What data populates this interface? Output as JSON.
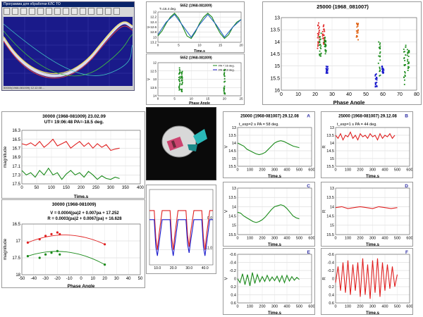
{
  "app": {
    "title": "Программа для обработки КЛС ТО",
    "status": "50000(1968-081009) 12.12.08  ...",
    "tool_count": 14
  },
  "colors": {
    "red": "#e02020",
    "green": "#1a8a1a",
    "blue": "#1a1acc",
    "dark_green": "#2a7a2a",
    "orange": "#e06010"
  },
  "chart_data": [
    {
      "id": "c2",
      "type": "line",
      "title": "5652 (1968-081009)",
      "annotation": "T=16.4 deg.",
      "xlabel": "Time,s",
      "ylabel": "V",
      "xlim": [
        0,
        20
      ],
      "ylim": [
        13.2,
        12.0
      ],
      "xticks": [
        0,
        5,
        10,
        15,
        20
      ],
      "yticks": [
        12.0,
        12.2,
        12.4,
        12.6,
        12.8,
        13.0,
        13.2
      ],
      "series": [
        {
          "color": "#1a8a1a",
          "x": [
            0,
            1,
            2,
            3,
            4,
            5,
            6,
            7,
            8,
            9,
            10,
            11,
            12,
            13,
            14,
            15,
            16,
            17,
            18,
            19,
            20
          ],
          "values": [
            12.95,
            12.75,
            12.45,
            12.2,
            12.05,
            12.25,
            12.6,
            12.95,
            13.05,
            12.8,
            12.45,
            12.2,
            12.05,
            12.2,
            12.55,
            12.85,
            13.05,
            12.9,
            12.6,
            12.4,
            12.3
          ]
        },
        {
          "color": "#2060c0",
          "x": [
            0,
            2,
            4,
            6,
            8,
            10,
            12,
            14,
            16,
            18,
            20
          ],
          "values": [
            12.9,
            12.4,
            12.1,
            12.55,
            13.0,
            12.5,
            12.1,
            12.5,
            13.0,
            12.6,
            12.3
          ]
        }
      ]
    },
    {
      "id": "c3",
      "type": "scatter",
      "title": "5652 (1968-081009)",
      "legend": [
        "PA = 16 deg.",
        "PA = 19 deg."
      ],
      "xlabel": "Phase Angle",
      "ylabel": "V",
      "xlim": [
        0,
        25
      ],
      "ylim": [
        14.0,
        12.0
      ],
      "xticks": [
        0,
        5,
        10,
        15,
        20,
        25
      ],
      "yticks": [
        12.0,
        12.5,
        13.0,
        13.5,
        14.0
      ],
      "clusters": [
        {
          "color": "#1a8a1a",
          "x": 6.5,
          "ymin": 12.3,
          "ymax": 13.9
        },
        {
          "color": "#1a8a1a",
          "x": 7.2,
          "ymin": 12.4,
          "ymax": 13.8
        },
        {
          "color": "#1a8a1a",
          "x": 20.0,
          "ymin": 12.4,
          "ymax": 13.9
        }
      ]
    },
    {
      "id": "c4",
      "type": "scatter",
      "title": "25000 (1968_081007)",
      "xlabel": "Phase Angle",
      "ylabel": "",
      "xlim": [
        0,
        80
      ],
      "ylim": [
        16,
        13
      ],
      "xticks": [
        0,
        10,
        20,
        30,
        40,
        50,
        60,
        70,
        80
      ],
      "yticks": [
        13,
        13.5,
        14,
        14.5,
        15,
        15.5,
        16
      ],
      "clusters": [
        {
          "color": "#e02020",
          "x": 22,
          "ymin": 13.2,
          "ymax": 14.3
        },
        {
          "color": "#1a8a1a",
          "x": 23,
          "ymin": 13.6,
          "ymax": 14.6
        },
        {
          "color": "#e02020",
          "x": 25,
          "ymin": 13.3,
          "ymax": 14.1
        },
        {
          "color": "#1a8a1a",
          "x": 26,
          "ymin": 13.8,
          "ymax": 14.5
        },
        {
          "color": "#1a1acc",
          "x": 27,
          "ymin": 15.0,
          "ymax": 15.3
        },
        {
          "color": "#e06010",
          "x": 45,
          "ymin": 13.2,
          "ymax": 14.0
        },
        {
          "color": "#1a8a1a",
          "x": 58,
          "ymin": 14.0,
          "ymax": 15.5
        },
        {
          "color": "#1a1acc",
          "x": 56,
          "ymin": 15.3,
          "ymax": 15.9
        },
        {
          "color": "#1a1acc",
          "x": 60,
          "ymin": 15.0,
          "ymax": 15.3
        },
        {
          "color": "#1a8a1a",
          "x": 73,
          "ymin": 14.1,
          "ymax": 15.8
        },
        {
          "color": "#1a8a1a",
          "x": 75,
          "ymin": 14.3,
          "ymax": 15.2
        }
      ]
    },
    {
      "id": "c5",
      "type": "line",
      "title": "30000 (1968-081009)    23.02.09",
      "subtitle": "UT= 19:06:48   PA=-18.5 deg.",
      "xlabel": "Time,s",
      "ylabel": "magnitude",
      "xlim": [
        0,
        400
      ],
      "ylim": [
        17.5,
        16.3
      ],
      "xticks": [
        0,
        50,
        100,
        150,
        200,
        250,
        300,
        350,
        400
      ],
      "yticks": [
        16.3,
        16.5,
        16.7,
        16.9,
        17.1,
        17.3,
        17.5
      ],
      "series": [
        {
          "color": "#e02020",
          "x": [
            0,
            15,
            30,
            45,
            60,
            75,
            90,
            105,
            120,
            135,
            150,
            165,
            180,
            195,
            210,
            225,
            240,
            255,
            270,
            285,
            300,
            315,
            330
          ],
          "values": [
            16.6,
            16.63,
            16.58,
            16.65,
            16.55,
            16.68,
            16.6,
            16.5,
            16.65,
            16.6,
            16.55,
            16.7,
            16.62,
            16.55,
            16.66,
            16.58,
            16.7,
            16.6,
            16.68,
            16.62,
            16.75,
            16.72,
            16.7
          ]
        },
        {
          "color": "#1a8a1a",
          "x": [
            0,
            15,
            30,
            45,
            60,
            75,
            90,
            105,
            120,
            135,
            150,
            165,
            180,
            195,
            210,
            225,
            240,
            255,
            270,
            285,
            300,
            315,
            330
          ],
          "values": [
            17.2,
            17.3,
            17.25,
            17.35,
            17.2,
            17.3,
            17.15,
            17.3,
            17.25,
            17.4,
            17.28,
            17.2,
            17.3,
            17.25,
            17.35,
            17.22,
            17.3,
            17.4,
            17.32,
            17.38,
            17.4,
            17.35,
            17.38
          ]
        }
      ]
    },
    {
      "id": "c6",
      "type": "scatter",
      "title": "30000 (1968-081009)",
      "fits": [
        "V = 0.0004(pa)2 + 0.007pa + 17.252",
        "R = 0.0003(pa)2 + 0.0067(pa) + 16.628"
      ],
      "xlabel": "Phase Angle",
      "ylabel": "magnitude",
      "xlim": [
        -50,
        50
      ],
      "ylim": [
        18.0,
        16.5
      ],
      "xticks": [
        -50,
        -40,
        -30,
        -20,
        -10,
        0,
        10,
        20,
        30,
        40,
        50
      ],
      "yticks": [
        16.5,
        17.0,
        17.5,
        18.0
      ],
      "series": [
        {
          "name": "R",
          "color": "#e02020",
          "x": [
            -45,
            -35,
            -30,
            -25,
            -20,
            -18,
            20
          ],
          "values": [
            17.05,
            16.95,
            16.85,
            16.8,
            16.75,
            16.8,
            17.1
          ]
        },
        {
          "name": "V",
          "color": "#1a8a1a",
          "x": [
            -45,
            -35,
            -30,
            -25,
            -20,
            -18,
            20
          ],
          "values": [
            17.45,
            17.5,
            17.4,
            17.35,
            17.3,
            17.4,
            17.7
          ]
        }
      ]
    },
    {
      "id": "c7",
      "type": "line",
      "title": "",
      "xlabel": "",
      "ylabel": "",
      "xlim": [
        5,
        45
      ],
      "ylim": [
        -1.5,
        1.0
      ],
      "xticks": [
        10,
        20,
        30,
        40
      ],
      "xticklabels": [
        "10.0",
        "20.0",
        "30.0",
        "40.0"
      ],
      "yticks": [
        0.0,
        -1.0
      ],
      "yticklabels": [
        "0.0",
        "-1.0"
      ],
      "series": [
        {
          "color": "#e02020",
          "x": [
            5,
            8,
            9,
            10,
            11,
            13,
            18,
            19,
            20,
            21,
            23,
            28,
            29,
            30,
            31,
            33,
            38,
            39,
            40,
            41,
            43,
            45
          ],
          "values": [
            0.3,
            0.3,
            -0.6,
            -1.0,
            -0.5,
            0.3,
            0.3,
            -0.6,
            -1.0,
            -0.5,
            0.3,
            0.3,
            -0.5,
            -0.9,
            -0.4,
            0.3,
            0.3,
            -0.6,
            -1.0,
            -0.5,
            0.3,
            0.3
          ]
        },
        {
          "color": "#1a1acc",
          "x": [
            5,
            8,
            9,
            10,
            11,
            13,
            18,
            19,
            20,
            21,
            23,
            28,
            29,
            30,
            31,
            33,
            38,
            39,
            40,
            41,
            43,
            45
          ],
          "values": [
            0.0,
            0.0,
            -0.9,
            -1.2,
            -0.8,
            0.0,
            0.0,
            -0.9,
            -1.2,
            -0.8,
            0.0,
            0.0,
            -0.8,
            -1.1,
            -0.7,
            0.0,
            0.0,
            -0.9,
            -1.2,
            -0.8,
            0.0,
            0.0
          ]
        }
      ]
    },
    {
      "id": "cA",
      "type": "line",
      "title": "25000 (1968-081007)    29.12.08",
      "annotation": "t_exp=2 s    PA = 58 deg.",
      "letter": "A",
      "xlabel": "Time,s",
      "ylabel": "V",
      "xlim": [
        0,
        600
      ],
      "ylim": [
        15.5,
        13
      ],
      "xticks": [
        0,
        100,
        200,
        300,
        400,
        500,
        600
      ],
      "yticks": [
        13,
        13.5,
        14,
        14.5,
        15,
        15.5
      ],
      "series": [
        {
          "color": "#1a8a1a",
          "x": [
            0,
            25,
            50,
            75,
            100,
            125,
            150,
            175,
            200,
            225,
            250,
            275,
            300,
            325,
            350,
            375,
            400,
            425,
            450,
            475,
            500
          ],
          "values": [
            14.0,
            14.1,
            14.2,
            14.4,
            14.5,
            14.6,
            14.7,
            14.75,
            14.7,
            14.6,
            14.4,
            14.2,
            14.0,
            13.9,
            13.85,
            13.9,
            14.0,
            14.1,
            14.2,
            14.25,
            14.3
          ]
        }
      ]
    },
    {
      "id": "cB",
      "type": "line",
      "title": "25000 (1968-081007)    29.12.08",
      "annotation": "t_exp=1 s    PA = 44 deg.",
      "letter": "B",
      "xlabel": "Time,s",
      "ylabel": "R",
      "xlim": [
        0,
        600
      ],
      "ylim": [
        15.5,
        13
      ],
      "xticks": [
        0,
        100,
        200,
        300,
        400,
        500,
        600
      ],
      "yticks": [
        13,
        13.5,
        14,
        14.5,
        15,
        15.5
      ],
      "series": [
        {
          "color": "#e02020",
          "x": [
            0,
            20,
            40,
            60,
            80,
            100,
            120,
            140,
            160,
            180,
            200,
            220,
            240,
            260,
            280,
            300,
            320,
            340,
            360,
            380,
            400,
            420,
            440,
            460,
            480
          ],
          "values": [
            13.5,
            13.7,
            13.4,
            13.8,
            13.5,
            13.6,
            13.3,
            13.7,
            13.5,
            13.8,
            13.4,
            13.6,
            13.5,
            13.7,
            13.4,
            13.6,
            13.5,
            13.8,
            13.4,
            13.7,
            13.5,
            13.6,
            13.4,
            13.7,
            13.5
          ]
        }
      ]
    },
    {
      "id": "cC",
      "type": "line",
      "letter": "C",
      "xlabel": "Time,s",
      "ylabel": "V",
      "xlim": [
        0,
        600
      ],
      "ylim": [
        15.5,
        13
      ],
      "xticks": [
        0,
        100,
        200,
        300,
        400,
        500,
        600
      ],
      "yticks": [
        13,
        13.5,
        14,
        14.5,
        15,
        15.5
      ],
      "series": [
        {
          "color": "#1a8a1a",
          "x": [
            0,
            25,
            50,
            75,
            100,
            125,
            150,
            175,
            200,
            225,
            250,
            275,
            300,
            325,
            350,
            375,
            400,
            425,
            450,
            475,
            500
          ],
          "values": [
            14.3,
            14.35,
            14.5,
            14.6,
            14.7,
            14.8,
            14.85,
            14.8,
            14.7,
            14.55,
            14.35,
            14.15,
            14.0,
            13.95,
            13.9,
            13.95,
            14.1,
            14.3,
            14.5,
            14.6,
            14.65
          ]
        }
      ]
    },
    {
      "id": "cD",
      "type": "line",
      "letter": "D",
      "xlabel": "Time,s",
      "ylabel": "R",
      "xlim": [
        0,
        600
      ],
      "ylim": [
        15.5,
        13
      ],
      "xticks": [
        0,
        100,
        200,
        300,
        400,
        500,
        600
      ],
      "yticks": [
        13,
        13.5,
        14,
        14.5,
        15,
        15.5
      ],
      "series": [
        {
          "color": "#e02020",
          "x": [
            0,
            50,
            100,
            150,
            200,
            250,
            300,
            350,
            400,
            450,
            500
          ],
          "values": [
            14.05,
            14.0,
            14.1,
            14.05,
            14.0,
            14.05,
            14.1,
            14.0,
            14.05,
            14.1,
            14.05
          ]
        }
      ]
    },
    {
      "id": "cE",
      "type": "line",
      "letter": "E",
      "xlabel": "Time,s",
      "ylabel": "V",
      "xlim": [
        0,
        600
      ],
      "ylim": [
        0.6,
        -0.6
      ],
      "xticks": [
        0,
        100,
        200,
        300,
        400,
        500,
        600
      ],
      "yticks": [
        -0.6,
        -0.4,
        -0.2,
        0,
        0.2,
        0.4,
        0.6
      ],
      "series": [
        {
          "color": "#1a8a1a",
          "x": [
            0,
            20,
            40,
            60,
            80,
            100,
            120,
            140,
            160,
            180,
            200,
            220,
            240,
            260,
            280,
            300,
            320,
            340,
            360,
            380,
            400,
            420,
            440,
            460,
            480,
            500
          ],
          "values": [
            0.0,
            0.1,
            -0.12,
            0.15,
            -0.1,
            0.18,
            -0.15,
            0.12,
            -0.1,
            0.08,
            -0.05,
            0.07,
            -0.08,
            0.06,
            -0.04,
            0.05,
            -0.06,
            0.08,
            -0.07,
            0.1,
            -0.08,
            0.06,
            -0.05,
            0.04,
            -0.03,
            0.02
          ]
        }
      ]
    },
    {
      "id": "cF",
      "type": "line",
      "letter": "F",
      "xlabel": "Time,s",
      "ylabel": "R",
      "xlim": [
        0,
        600
      ],
      "ylim": [
        0.6,
        -0.6
      ],
      "xticks": [
        0,
        100,
        200,
        300,
        400,
        500,
        600
      ],
      "yticks": [
        -0.6,
        -0.4,
        -0.2,
        0,
        0.2,
        0.4,
        0.6
      ],
      "series": [
        {
          "color": "#e02020",
          "x": [
            0,
            20,
            40,
            60,
            80,
            100,
            120,
            140,
            160,
            180,
            200,
            220,
            240,
            260,
            280,
            300,
            320,
            340,
            360,
            380,
            400,
            420,
            440,
            460,
            480,
            500
          ],
          "values": [
            0.1,
            -0.3,
            0.3,
            -0.4,
            0.35,
            -0.45,
            0.4,
            -0.35,
            0.3,
            -0.4,
            0.45,
            -0.5,
            0.4,
            -0.35,
            0.5,
            -0.45,
            0.35,
            -0.5,
            0.45,
            -0.4,
            0.3,
            -0.35,
            0.25,
            -0.3,
            0.2,
            -0.1
          ]
        }
      ]
    }
  ]
}
